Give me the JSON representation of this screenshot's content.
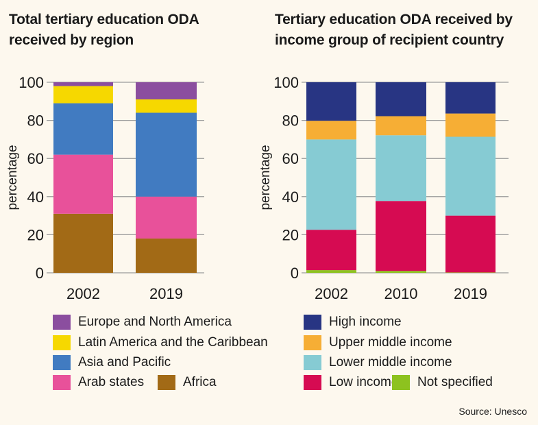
{
  "chart_data": [
    {
      "type": "bar",
      "stacked": true,
      "title": "Total tertiary education ODA received by region",
      "ylabel": "percentage",
      "ylim": [
        0,
        100
      ],
      "yticks": [
        0,
        20,
        40,
        60,
        80,
        100
      ],
      "grid": true,
      "legend": "bottom",
      "categories": [
        "2002",
        "2019"
      ],
      "series": [
        {
          "name": "Africa",
          "color": "#a26a16",
          "values": [
            31,
            18
          ]
        },
        {
          "name": "Arab states",
          "color": "#e8519a",
          "values": [
            31,
            22
          ]
        },
        {
          "name": "Asia and Pacific",
          "color": "#417bc1",
          "values": [
            27,
            44
          ]
        },
        {
          "name": "Latin America and the Caribbean",
          "color": "#f6d800",
          "values": [
            9,
            7
          ]
        },
        {
          "name": "Europe and North America",
          "color": "#8b4e9f",
          "values": [
            2,
            9
          ]
        }
      ]
    },
    {
      "type": "bar",
      "stacked": true,
      "title": "Tertiary education ODA received by income group of recipient country",
      "ylabel": "percentage",
      "ylim": [
        0,
        100
      ],
      "yticks": [
        0,
        20,
        40,
        60,
        80,
        100
      ],
      "grid": true,
      "legend": "bottom",
      "categories": [
        "2002",
        "2010",
        "2019"
      ],
      "series": [
        {
          "name": "Not specified",
          "color": "#8dc21f",
          "values": [
            1.4,
            1,
            0.2
          ]
        },
        {
          "name": "Low income",
          "color": "#d60b52",
          "values": [
            21.2,
            36.7,
            29.8
          ]
        },
        {
          "name": "Lower middle income",
          "color": "#86cbd3",
          "values": [
            47.4,
            34.5,
            41.4
          ]
        },
        {
          "name": "Upper middle income",
          "color": "#f6ae35",
          "values": [
            9.8,
            10,
            12.2
          ]
        },
        {
          "name": "High income",
          "color": "#283583",
          "values": [
            20.2,
            17.8,
            16.4
          ]
        }
      ]
    }
  ],
  "titles": {
    "left": [
      "Total tertiary education ODA",
      "received by region"
    ],
    "right": [
      "Tertiary education ODA received by",
      "income group of recipient country"
    ]
  },
  "source": "Source: Unesco"
}
